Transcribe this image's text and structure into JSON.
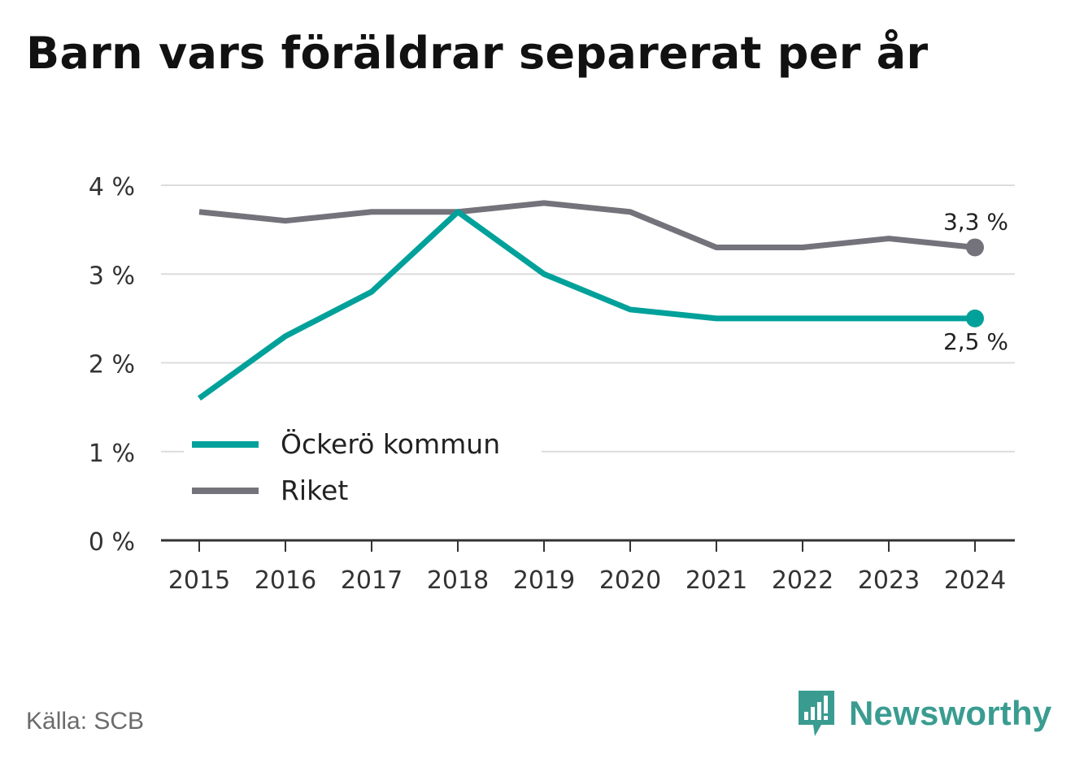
{
  "title": "Barn vars föräldrar separerat per år",
  "source": "Källa: SCB",
  "brand": {
    "name": "Newsworthy",
    "icon": "newsworthy-bars-icon",
    "color": "#3a9c90"
  },
  "chart_data": {
    "type": "line",
    "title": "Barn vars föräldrar separerat per år",
    "x": [
      "2015",
      "2016",
      "2017",
      "2018",
      "2019",
      "2020",
      "2021",
      "2022",
      "2023",
      "2024"
    ],
    "ylim": [
      0,
      4
    ],
    "yticks": [
      0,
      1,
      2,
      3,
      4
    ],
    "ytick_labels": [
      "0 %",
      "1 %",
      "2 %",
      "3 %",
      "4 %"
    ],
    "grid": true,
    "legend_position": "bottom-left",
    "series": [
      {
        "name": "Öckerö kommun",
        "color": "#00a19a",
        "values": [
          1.6,
          2.3,
          2.8,
          3.7,
          3.0,
          2.6,
          2.5,
          2.5,
          2.5,
          2.5
        ],
        "end_label": "2,5 %"
      },
      {
        "name": "Riket",
        "color": "#74737b",
        "values": [
          3.7,
          3.6,
          3.7,
          3.7,
          3.8,
          3.7,
          3.3,
          3.3,
          3.4,
          3.3
        ],
        "end_label": "3,3 %"
      }
    ]
  }
}
